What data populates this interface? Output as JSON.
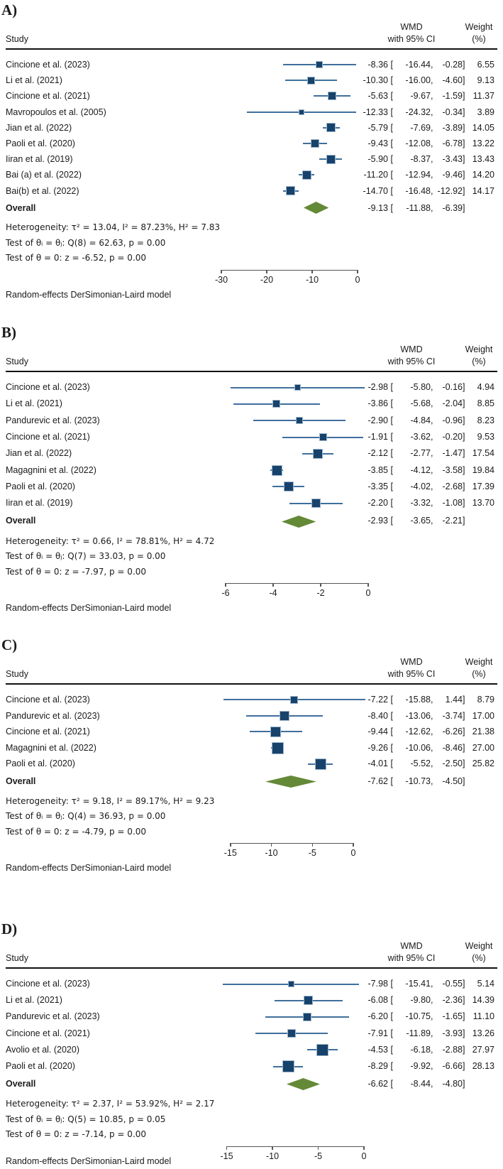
{
  "figure": {
    "footer_note": "Random-effects DerSimonian-Laird model",
    "columns": {
      "study": "Study",
      "effect1": "WMD",
      "effect2": "with 95% CI",
      "weight1": "Weight",
      "weight2": "(%)"
    },
    "brackets": {
      "open": "[",
      "comma": ",",
      "close": "]"
    }
  },
  "colors": {
    "marker": "#17426b",
    "marker_border": "#9db6cb",
    "ci_line": "#3f6f9c",
    "diamond": "#648937",
    "axis": "#555555",
    "rule": "#111111",
    "text": "#1a1a1a"
  },
  "chart_data": [
    {
      "type": "forest",
      "panel_label": "A)",
      "effect_measure": "WMD",
      "xlim": [
        -30,
        0
      ],
      "axis": {
        "tick_labels": [
          "-30",
          "-20",
          "-10",
          "0"
        ]
      },
      "studies": [
        {
          "name": "Cincione et al. (2023)",
          "est": "-8.36",
          "lo": "-16.44",
          "hi": "-0.28",
          "weight": "6.55"
        },
        {
          "name": "Li et al. (2021)",
          "est": "-10.30",
          "lo": "-16.00",
          "hi": "-4.60",
          "weight": "9.13"
        },
        {
          "name": "Cincione et al. (2021)",
          "est": "-5.63",
          "lo": "-9.67",
          "hi": "-1.59",
          "weight": "11.37"
        },
        {
          "name": "Mavropoulos et al. (2005)",
          "est": "-12.33",
          "lo": "-24.32",
          "hi": "-0.34",
          "weight": "3.89"
        },
        {
          "name": "Jian et al. (2022)",
          "est": "-5.79",
          "lo": "-7.69",
          "hi": "-3.89",
          "weight": "14.05"
        },
        {
          "name": "Paoli et al. (2020)",
          "est": "-9.43",
          "lo": "-12.08",
          "hi": "-6.78",
          "weight": "13.22"
        },
        {
          "name": "Iiran et al. (2019)",
          "est": "-5.90",
          "lo": "-8.37",
          "hi": "-3.43",
          "weight": "13.43"
        },
        {
          "name": "Bai (a) et al. (2022)",
          "est": "-11.20",
          "lo": "-12.94",
          "hi": "-9.46",
          "weight": "14.20"
        },
        {
          "name": "Bai(b) et al. (2022)",
          "est": "-14.70",
          "lo": "-16.48",
          "hi": "-12.92",
          "weight": "14.17"
        }
      ],
      "overall": {
        "label": "Overall",
        "est": "-9.13",
        "lo": "-11.88",
        "hi": "-6.39"
      },
      "heterogeneity": "Heterogeneity: τ² = 13.04, I² = 87.23%, H² = 7.83",
      "test_group": "Test of θᵢ = θⱼ: Q(8) = 62.63, p = 0.00",
      "test_zero": "Test of θ = 0: z = -6.52, p = 0.00"
    },
    {
      "type": "forest",
      "panel_label": "B)",
      "effect_measure": "WMD",
      "xlim": [
        -6,
        0
      ],
      "axis": {
        "tick_labels": [
          "-6",
          "-4",
          "-2",
          "0"
        ]
      },
      "studies": [
        {
          "name": "Cincione et al. (2023)",
          "est": "-2.98",
          "lo": "-5.80",
          "hi": "-0.16",
          "weight": "4.94"
        },
        {
          "name": "Li et al. (2021)",
          "est": "-3.86",
          "lo": "-5.68",
          "hi": "-2.04",
          "weight": "8.85"
        },
        {
          "name": "Pandurevic et al. (2023)",
          "est": "-2.90",
          "lo": "-4.84",
          "hi": "-0.96",
          "weight": "8.23"
        },
        {
          "name": "Cincione et al. (2021)",
          "est": "-1.91",
          "lo": "-3.62",
          "hi": "-0.20",
          "weight": "9.53"
        },
        {
          "name": "Jian et al. (2022)",
          "est": "-2.12",
          "lo": "-2.77",
          "hi": "-1.47",
          "weight": "17.54"
        },
        {
          "name": "Magagnini et al. (2022)",
          "est": "-3.85",
          "lo": "-4.12",
          "hi": "-3.58",
          "weight": "19.84"
        },
        {
          "name": "Paoli et al. (2020)",
          "est": "-3.35",
          "lo": "-4.02",
          "hi": "-2.68",
          "weight": "17.39"
        },
        {
          "name": "Iiran et al. (2019)",
          "est": "-2.20",
          "lo": "-3.32",
          "hi": "-1.08",
          "weight": "13.70"
        }
      ],
      "overall": {
        "label": "Overall",
        "est": "-2.93",
        "lo": "-3.65",
        "hi": "-2.21"
      },
      "heterogeneity": "Heterogeneity: τ² = 0.66, I² = 78.81%, H² = 4.72",
      "test_group": "Test of θᵢ = θⱼ: Q(7) = 33.03, p = 0.00",
      "test_zero": "Test of θ = 0: z = -7.97, p = 0.00"
    },
    {
      "type": "forest",
      "panel_label": "C)",
      "effect_measure": "WMD",
      "xlim": [
        -15,
        0
      ],
      "axis": {
        "tick_labels": [
          "-15",
          "-10",
          "-5",
          "0"
        ]
      },
      "studies": [
        {
          "name": "Cincione et al. (2023)",
          "est": "-7.22",
          "lo": "-15.88",
          "hi": "1.44",
          "weight": "8.79"
        },
        {
          "name": "Pandurevic et al. (2023)",
          "est": "-8.40",
          "lo": "-13.06",
          "hi": "-3.74",
          "weight": "17.00"
        },
        {
          "name": "Cincione et al. (2021)",
          "est": "-9.44",
          "lo": "-12.62",
          "hi": "-6.26",
          "weight": "21.38"
        },
        {
          "name": "Magagnini et al. (2022)",
          "est": "-9.26",
          "lo": "-10.06",
          "hi": "-8.46",
          "weight": "27.00"
        },
        {
          "name": "Paoli et al. (2020)",
          "est": "-4.01",
          "lo": "-5.52",
          "hi": "-2.50",
          "weight": "25.82"
        }
      ],
      "overall": {
        "label": "Overall",
        "est": "-7.62",
        "lo": "-10.73",
        "hi": "-4.50"
      },
      "heterogeneity": "Heterogeneity: τ² = 9.18, I² = 89.17%, H² = 9.23",
      "test_group": "Test of θᵢ = θⱼ: Q(4) = 36.93, p = 0.00",
      "test_zero": "Test of θ = 0: z = -4.79, p = 0.00"
    },
    {
      "type": "forest",
      "panel_label": "D)",
      "effect_measure": "WMD",
      "xlim": [
        -15,
        0
      ],
      "axis": {
        "tick_labels": [
          "-15",
          "-10",
          "-5",
          "0"
        ]
      },
      "studies": [
        {
          "name": "Cincione et al. (2023)",
          "est": "-7.98",
          "lo": "-15.41",
          "hi": "-0.55",
          "weight": "5.14"
        },
        {
          "name": "Li et al. (2021)",
          "est": "-6.08",
          "lo": "-9.80",
          "hi": "-2.36",
          "weight": "14.39"
        },
        {
          "name": "Pandurevic et al. (2023)",
          "est": "-6.20",
          "lo": "-10.75",
          "hi": "-1.65",
          "weight": "11.10"
        },
        {
          "name": "Cincione et al. (2021)",
          "est": "-7.91",
          "lo": "-11.89",
          "hi": "-3.93",
          "weight": "13.26"
        },
        {
          "name": "Avolio et al. (2020)",
          "est": "-4.53",
          "lo": "-6.18",
          "hi": "-2.88",
          "weight": "27.97"
        },
        {
          "name": "Paoli et al. (2020)",
          "est": "-8.29",
          "lo": "-9.92",
          "hi": "-6.66",
          "weight": "28.13"
        }
      ],
      "overall": {
        "label": "Overall",
        "est": "-6.62",
        "lo": "-8.44",
        "hi": "-4.80"
      },
      "heterogeneity": "Heterogeneity: τ² = 2.37, I² = 53.92%, H² = 2.17",
      "test_group": "Test of θᵢ = θⱼ: Q(5) = 10.85, p = 0.05",
      "test_zero": "Test of θ = 0: z = -7.14, p = 0.00"
    }
  ]
}
